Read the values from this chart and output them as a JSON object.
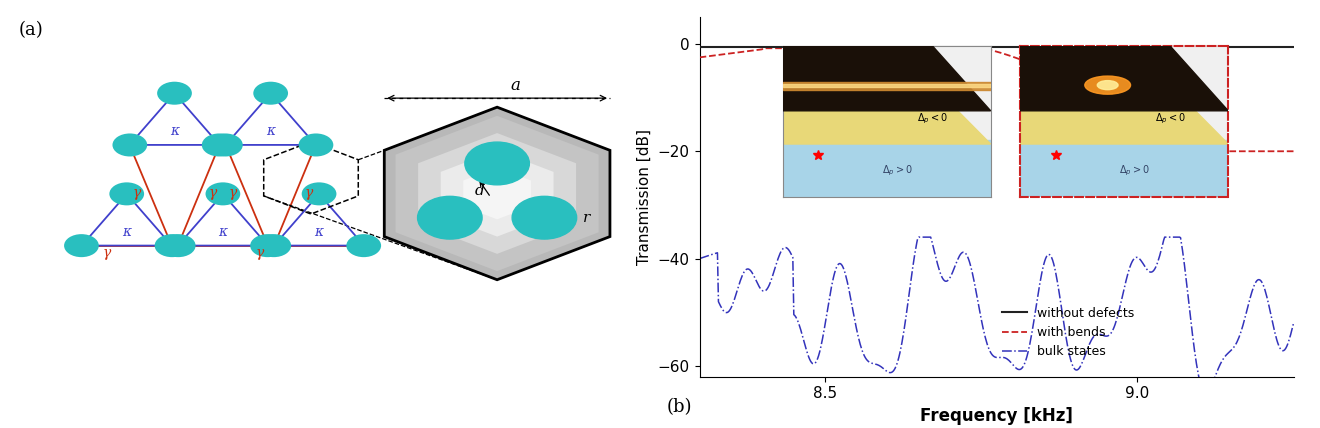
{
  "fig_width": 13.2,
  "fig_height": 4.28,
  "dpi": 100,
  "bg_color": "#ffffff",
  "panel_a_label": "(a)",
  "panel_b_label": "(b)",
  "teal_color": "#29bfbf",
  "blue_triangle_color": "#4040cc",
  "red_line_color": "#cc3010",
  "kappa_label": "κ",
  "gamma_label": "γ",
  "freq_label": "Frequency [kHz]",
  "trans_label": "Transmission [dB]",
  "legend_entries": [
    "without defects",
    "with bends",
    "bulk states"
  ],
  "legend_colors": [
    "#222222",
    "#cc2222",
    "#3333bb"
  ],
  "ylim": [
    -62,
    5
  ],
  "xlim": [
    8.3,
    9.25
  ],
  "yticks": [
    0,
    -20,
    -40,
    -60
  ],
  "xticks": [
    8.5,
    9.0
  ]
}
